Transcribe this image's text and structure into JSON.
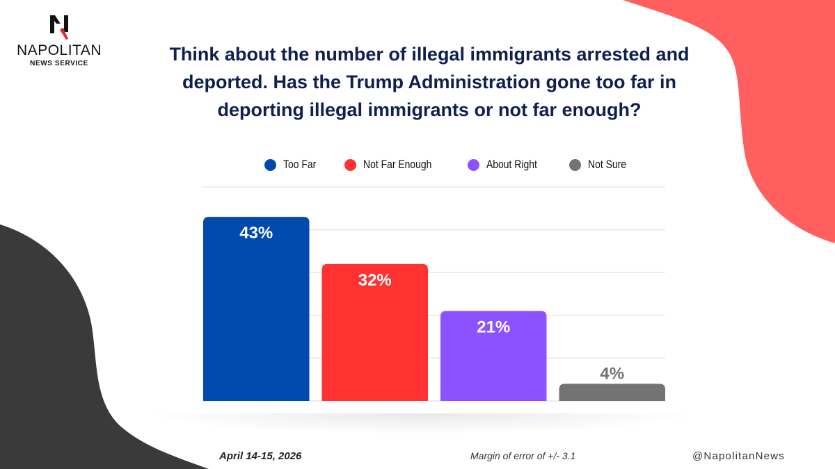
{
  "brand": {
    "name": "NAPOLITAN",
    "subtitle": "NEWS SERVICE",
    "logo_icon": "napolitan-n-eagle-logo"
  },
  "colors": {
    "title": "#0f1f4f",
    "accent_red_shape": "#ff5f5f",
    "accent_dark_shape": "#3a3a3a"
  },
  "footer": {
    "date": "April 14-15, 2026",
    "margin_of_error": "Margin of error of +/- 3.1",
    "handle": "@NapolitanNews"
  },
  "chart_data": {
    "type": "bar",
    "title": "Think about the number of illegal immigrants arrested and deported. Has the Trump Administration gone too far in deporting illegal immigrants or not far enough?",
    "categories": [
      "Too Far",
      "Not Far Enough",
      "About Right",
      "Not Sure"
    ],
    "values": [
      43,
      32,
      21,
      4
    ],
    "data_labels": [
      "43%",
      "32%",
      "21%",
      "4%"
    ],
    "colors": [
      "#004aad",
      "#ff3131",
      "#8c52ff",
      "#737373"
    ],
    "legend": [
      {
        "label": "Too Far",
        "color": "#004aad"
      },
      {
        "label": "Not Far Enough",
        "color": "#ff3131"
      },
      {
        "label": "About Right",
        "color": "#8c52ff"
      },
      {
        "label": "Not Sure",
        "color": "#737373"
      }
    ],
    "legend_position": "top-center",
    "xlabel": "",
    "ylabel": "",
    "ylim": [
      0,
      50
    ],
    "grid": true,
    "gridline_values": [
      0,
      10,
      20,
      30,
      40,
      50
    ],
    "y_tick_labels_visible": false,
    "unit": "%"
  }
}
